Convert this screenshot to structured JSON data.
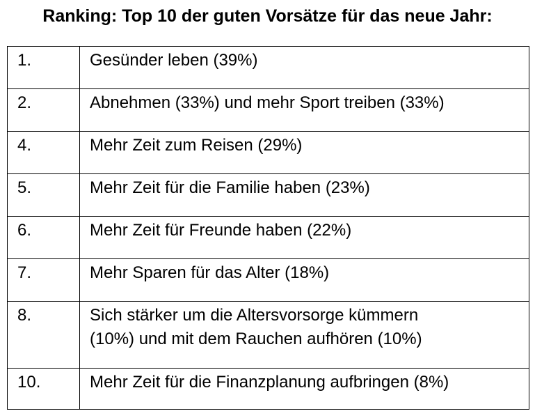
{
  "title": "Ranking: Top 10 der guten Vorsätze für das neue Jahr:",
  "ranking": [
    {
      "rank": "1.",
      "text": "Gesünder leben (39%)"
    },
    {
      "rank": "2.",
      "text": "Abnehmen (33%) und mehr Sport treiben (33%)"
    },
    {
      "rank": "4.",
      "text": "Mehr Zeit zum Reisen (29%)"
    },
    {
      "rank": "5.",
      "text": "Mehr Zeit für die Familie haben (23%)"
    },
    {
      "rank": "6.",
      "text": "Mehr Zeit für Freunde haben (22%)"
    },
    {
      "rank": "7.",
      "text": "Mehr Sparen für das Alter (18%)"
    },
    {
      "rank": "8.",
      "text_line1": "Sich stärker um die Altersvorsorge kümmern",
      "text_line2": "(10%) und mit dem Rauchen aufhören (10%)"
    },
    {
      "rank": "10.",
      "text": "Mehr Zeit für die Finanzplanung aufbringen (8%)"
    }
  ]
}
